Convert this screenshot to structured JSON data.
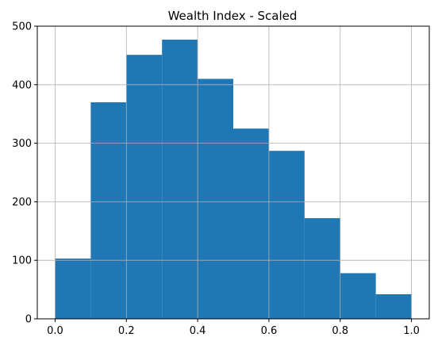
{
  "chart_data": {
    "type": "bar",
    "title": "Wealth Index - Scaled",
    "xlabel": "",
    "ylabel": "",
    "bins": [
      {
        "x0": 0.0,
        "x1": 0.1,
        "count": 103
      },
      {
        "x0": 0.1,
        "x1": 0.2,
        "count": 370
      },
      {
        "x0": 0.2,
        "x1": 0.3,
        "count": 451
      },
      {
        "x0": 0.3,
        "x1": 0.4,
        "count": 477
      },
      {
        "x0": 0.4,
        "x1": 0.5,
        "count": 410
      },
      {
        "x0": 0.5,
        "x1": 0.6,
        "count": 325
      },
      {
        "x0": 0.6,
        "x1": 0.7,
        "count": 287
      },
      {
        "x0": 0.7,
        "x1": 0.8,
        "count": 172
      },
      {
        "x0": 0.8,
        "x1": 0.9,
        "count": 78
      },
      {
        "x0": 0.9,
        "x1": 1.0,
        "count": 42
      }
    ],
    "xlim": [
      -0.05,
      1.05
    ],
    "ylim": [
      0,
      500
    ],
    "xticks": [
      "0.0",
      "0.2",
      "0.4",
      "0.6",
      "0.8",
      "1.0"
    ],
    "yticks": [
      "0",
      "100",
      "200",
      "300",
      "400",
      "500"
    ],
    "grid": true,
    "colors": {
      "bar": "#1f77b4",
      "grid": "#b0b0b0",
      "axis": "#000000"
    }
  }
}
